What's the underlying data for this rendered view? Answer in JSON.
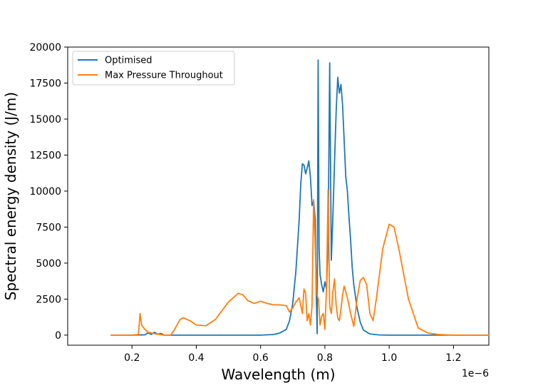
{
  "chart_data": {
    "type": "line",
    "title": "",
    "xlabel": "Wavelength (m)",
    "ylabel": "Spectral energy density (J/m)",
    "x_offset_label": "1e−6",
    "xlim": [
      0.0,
      1.31
    ],
    "ylim": [
      -700,
      20000
    ],
    "x_ticks": [
      0.2,
      0.4,
      0.6,
      0.8,
      1.0,
      1.2
    ],
    "x_tick_labels": [
      "0.2",
      "0.4",
      "0.6",
      "0.8",
      "1.0",
      "1.2"
    ],
    "y_ticks": [
      0,
      2500,
      5000,
      7500,
      10000,
      12500,
      15000,
      17500,
      20000
    ],
    "y_tick_labels": [
      "0",
      "2500",
      "5000",
      "7500",
      "10000",
      "12500",
      "15000",
      "17500",
      "20000"
    ],
    "grid": false,
    "legend_position": "top-left",
    "series": [
      {
        "name": "Optimised",
        "color": "#1f77b4",
        "x": [
          0.135,
          0.2,
          0.24,
          0.25,
          0.26,
          0.27,
          0.28,
          0.29,
          0.3,
          0.4,
          0.6,
          0.64,
          0.66,
          0.68,
          0.69,
          0.7,
          0.71,
          0.72,
          0.725,
          0.73,
          0.735,
          0.74,
          0.745,
          0.75,
          0.755,
          0.76,
          0.765,
          0.77,
          0.773,
          0.776,
          0.779,
          0.782,
          0.785,
          0.79,
          0.795,
          0.8,
          0.805,
          0.81,
          0.815,
          0.82,
          0.825,
          0.83,
          0.835,
          0.84,
          0.845,
          0.85,
          0.855,
          0.86,
          0.865,
          0.87,
          0.875,
          0.88,
          0.885,
          0.89,
          0.9,
          0.91,
          0.92,
          0.94,
          0.97,
          1.0,
          1.2,
          1.31
        ],
        "y": [
          0,
          0,
          20,
          150,
          50,
          200,
          60,
          120,
          0,
          0,
          0,
          40,
          150,
          400,
          1000,
          2200,
          4500,
          8000,
          10500,
          11900,
          11800,
          11200,
          11600,
          12100,
          11000,
          9000,
          9300,
          8000,
          3000,
          100,
          19100,
          6000,
          4200,
          3500,
          3000,
          3700,
          3200,
          6500,
          18900,
          5200,
          8300,
          12000,
          15500,
          17900,
          16800,
          17400,
          16000,
          13500,
          11000,
          10000,
          8200,
          6600,
          4700,
          3500,
          1900,
          900,
          350,
          80,
          10,
          0,
          0,
          0
        ]
      },
      {
        "name": "Max Pressure Throughout",
        "color": "#ff7f0e",
        "x": [
          0.135,
          0.2,
          0.22,
          0.225,
          0.23,
          0.24,
          0.25,
          0.27,
          0.3,
          0.32,
          0.33,
          0.34,
          0.35,
          0.36,
          0.38,
          0.4,
          0.43,
          0.46,
          0.5,
          0.53,
          0.545,
          0.56,
          0.58,
          0.6,
          0.62,
          0.64,
          0.66,
          0.68,
          0.69,
          0.7,
          0.71,
          0.72,
          0.73,
          0.735,
          0.74,
          0.745,
          0.75,
          0.755,
          0.76,
          0.765,
          0.77,
          0.775,
          0.78,
          0.785,
          0.79,
          0.795,
          0.8,
          0.805,
          0.81,
          0.815,
          0.82,
          0.825,
          0.83,
          0.835,
          0.84,
          0.845,
          0.85,
          0.855,
          0.86,
          0.865,
          0.87,
          0.88,
          0.89,
          0.9,
          0.91,
          0.92,
          0.93,
          0.94,
          0.95,
          0.96,
          0.98,
          1.0,
          1.015,
          1.03,
          1.06,
          1.09,
          1.12,
          1.15,
          1.2,
          1.31
        ],
        "y": [
          0,
          0,
          50,
          1500,
          700,
          400,
          200,
          100,
          0,
          0,
          300,
          700,
          1100,
          1200,
          1000,
          700,
          650,
          1100,
          2300,
          2900,
          2800,
          2400,
          2200,
          2350,
          2200,
          2100,
          2100,
          2050,
          1600,
          1900,
          2300,
          2600,
          1500,
          3200,
          2900,
          1000,
          1500,
          700,
          2000,
          9400,
          6100,
          2800,
          2500,
          700,
          1300,
          1500,
          400,
          3200,
          10100,
          2000,
          1500,
          3000,
          3900,
          2100,
          1200,
          1000,
          1800,
          2800,
          3400,
          3000,
          2600,
          1500,
          600,
          2500,
          3800,
          4000,
          3500,
          1500,
          1000,
          2500,
          6000,
          7700,
          7500,
          6000,
          2500,
          500,
          150,
          50,
          0,
          0
        ]
      }
    ]
  }
}
